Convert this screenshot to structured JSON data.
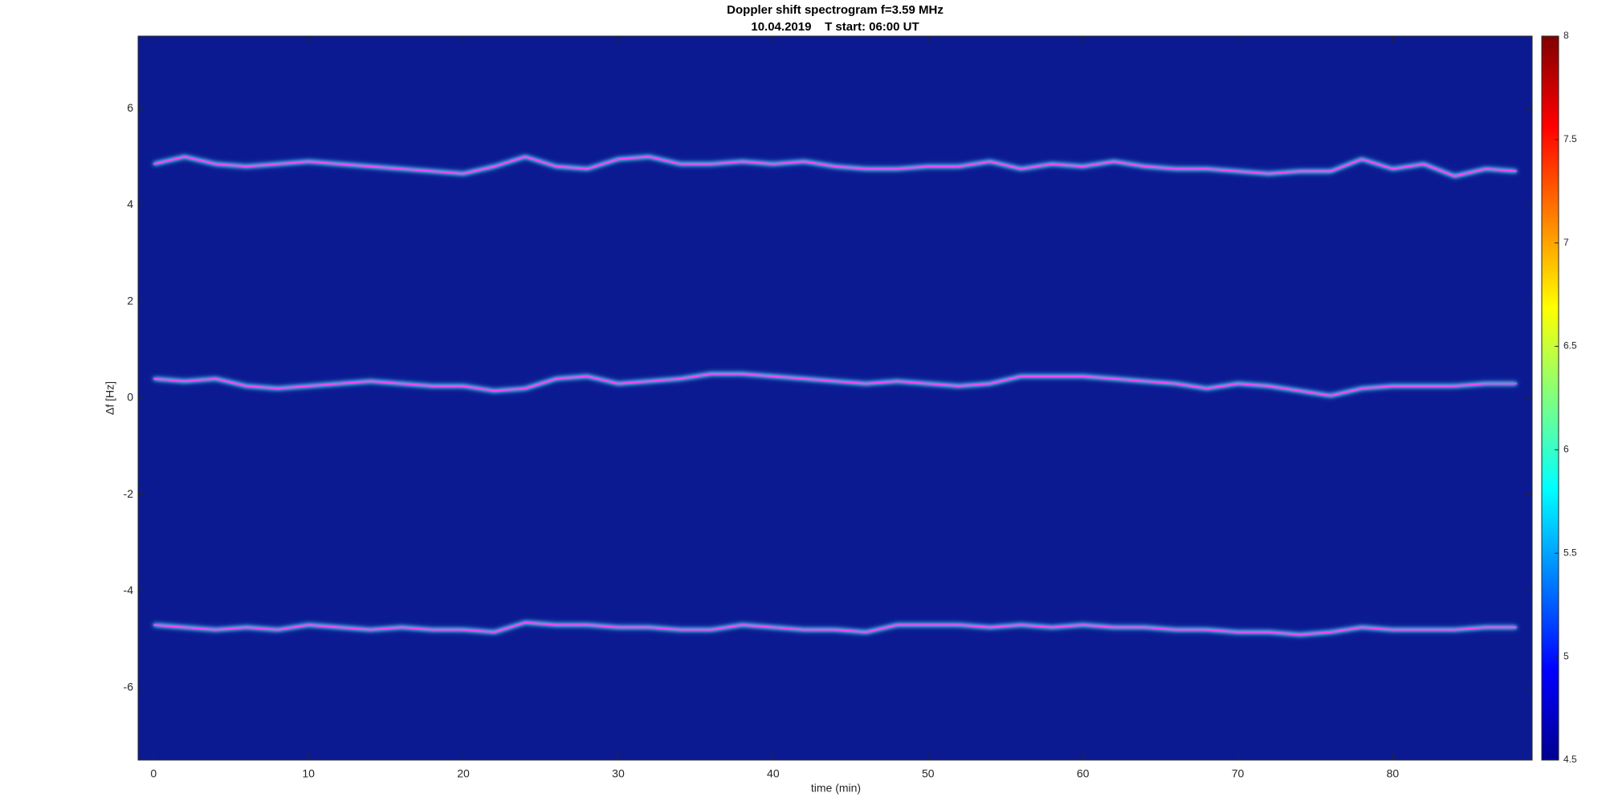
{
  "chart_data": {
    "type": "line",
    "title": "Doppler shift spectrogram f=3.59 MHz",
    "subtitle": "10.04.2019    T start: 06:00 UT",
    "x_label": "time (min)",
    "y_label": "Δf [Hz]",
    "xlim": [
      -1,
      89
    ],
    "xticks": [
      0,
      10,
      20,
      30,
      40,
      50,
      60,
      70,
      80
    ],
    "ylim": [
      -7.5,
      7.5
    ],
    "yticks": [
      -6,
      -4,
      -2,
      0,
      2,
      4,
      6
    ],
    "background_color": "#0c1a92",
    "colorbar": {
      "lim": [
        4.5,
        8
      ],
      "ticks": [
        4.5,
        5,
        5.5,
        6,
        6.5,
        7,
        7.5,
        8
      ]
    },
    "x": [
      0,
      2,
      4,
      6,
      8,
      10,
      12,
      14,
      16,
      18,
      20,
      22,
      24,
      26,
      28,
      30,
      32,
      34,
      36,
      38,
      40,
      42,
      44,
      46,
      48,
      50,
      52,
      54,
      56,
      58,
      60,
      62,
      64,
      66,
      68,
      70,
      72,
      74,
      76,
      78,
      80,
      82,
      84,
      86,
      88
    ],
    "series": [
      {
        "color": "#ff40ff",
        "values": [
          4.85,
          5.0,
          4.85,
          4.8,
          4.85,
          4.9,
          4.85,
          4.8,
          4.75,
          4.7,
          4.65,
          4.8,
          5.0,
          4.8,
          4.75,
          4.95,
          5.0,
          4.85,
          4.85,
          4.9,
          4.85,
          4.9,
          4.8,
          4.75,
          4.75,
          4.8,
          4.8,
          4.9,
          4.75,
          4.85,
          4.8,
          4.9,
          4.8,
          4.75,
          4.75,
          4.7,
          4.65,
          4.7,
          4.7,
          4.95,
          4.75,
          4.85,
          4.6,
          4.75,
          4.7
        ]
      },
      {
        "color": "#ff40ff",
        "values": [
          0.4,
          0.35,
          0.4,
          0.25,
          0.2,
          0.25,
          0.3,
          0.35,
          0.3,
          0.25,
          0.25,
          0.15,
          0.2,
          0.4,
          0.45,
          0.3,
          0.35,
          0.4,
          0.5,
          0.5,
          0.45,
          0.4,
          0.35,
          0.3,
          0.35,
          0.3,
          0.25,
          0.3,
          0.45,
          0.45,
          0.45,
          0.4,
          0.35,
          0.3,
          0.2,
          0.3,
          0.25,
          0.15,
          0.05,
          0.2,
          0.25,
          0.25,
          0.25,
          0.3,
          0.3
        ]
      },
      {
        "color": "#ff40ff",
        "values": [
          -4.7,
          -4.75,
          -4.8,
          -4.75,
          -4.8,
          -4.7,
          -4.75,
          -4.8,
          -4.75,
          -4.8,
          -4.8,
          -4.85,
          -4.65,
          -4.7,
          -4.7,
          -4.75,
          -4.75,
          -4.8,
          -4.8,
          -4.7,
          -4.75,
          -4.8,
          -4.8,
          -4.85,
          -4.7,
          -4.7,
          -4.7,
          -4.75,
          -4.7,
          -4.75,
          -4.7,
          -4.75,
          -4.75,
          -4.8,
          -4.8,
          -4.85,
          -4.85,
          -4.9,
          -4.85,
          -4.75,
          -4.8,
          -4.8,
          -4.8,
          -4.75,
          -4.75
        ]
      }
    ]
  }
}
